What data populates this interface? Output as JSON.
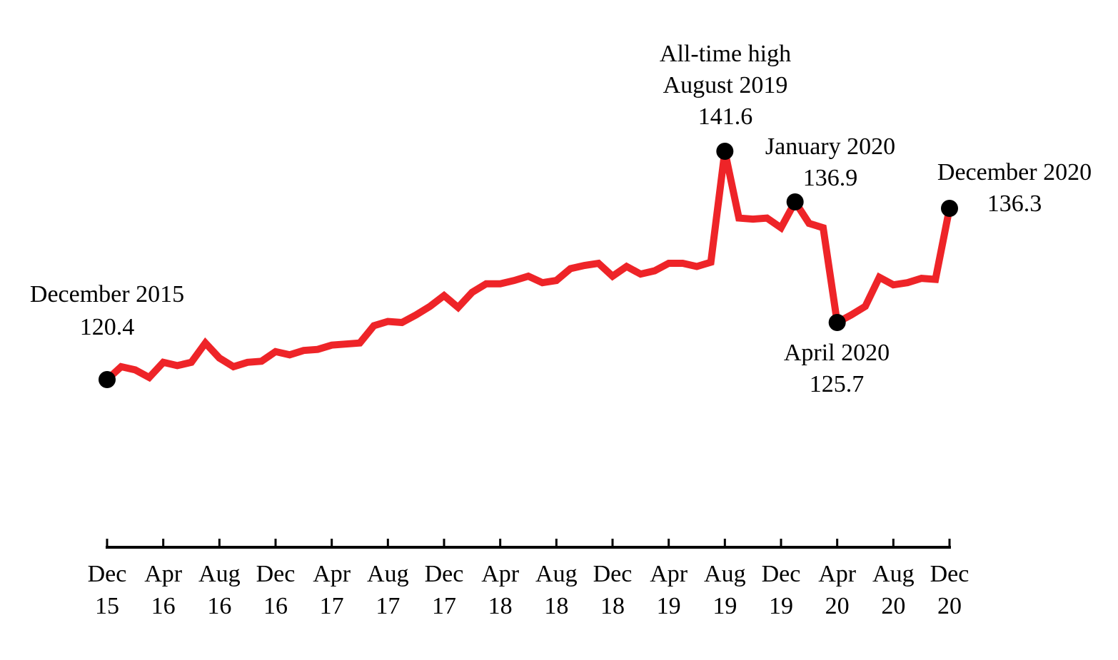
{
  "chart_data": {
    "type": "line",
    "title": "",
    "xlabel": "",
    "ylabel": "",
    "ylim": [
      110,
      145
    ],
    "grid": false,
    "legend": "none",
    "line_color": "#EE2428",
    "marker_color": "#000000",
    "x_ticks": [
      {
        "date": "2015-12",
        "line1": "Dec",
        "line2": "15"
      },
      {
        "date": "2016-04",
        "line1": "Apr",
        "line2": "16"
      },
      {
        "date": "2016-08",
        "line1": "Aug",
        "line2": "16"
      },
      {
        "date": "2016-12",
        "line1": "Dec",
        "line2": "16"
      },
      {
        "date": "2017-04",
        "line1": "Apr",
        "line2": "17"
      },
      {
        "date": "2017-08",
        "line1": "Aug",
        "line2": "17"
      },
      {
        "date": "2017-12",
        "line1": "Dec",
        "line2": "17"
      },
      {
        "date": "2018-04",
        "line1": "Apr",
        "line2": "18"
      },
      {
        "date": "2018-08",
        "line1": "Aug",
        "line2": "18"
      },
      {
        "date": "2018-12",
        "line1": "Dec",
        "line2": "18"
      },
      {
        "date": "2019-04",
        "line1": "Apr",
        "line2": "19"
      },
      {
        "date": "2019-08",
        "line1": "Aug",
        "line2": "19"
      },
      {
        "date": "2019-12",
        "line1": "Dec",
        "line2": "19"
      },
      {
        "date": "2020-04",
        "line1": "Apr",
        "line2": "20"
      },
      {
        "date": "2020-08",
        "line1": "Aug",
        "line2": "20"
      },
      {
        "date": "2020-12",
        "line1": "Dec",
        "line2": "20"
      }
    ],
    "x": [
      "2015-12",
      "2016-01",
      "2016-02",
      "2016-03",
      "2016-04",
      "2016-05",
      "2016-06",
      "2016-07",
      "2016-08",
      "2016-09",
      "2016-10",
      "2016-11",
      "2016-12",
      "2017-01",
      "2017-02",
      "2017-03",
      "2017-04",
      "2017-05",
      "2017-06",
      "2017-07",
      "2017-08",
      "2017-09",
      "2017-10",
      "2017-11",
      "2017-12",
      "2018-01",
      "2018-02",
      "2018-03",
      "2018-04",
      "2018-05",
      "2018-06",
      "2018-07",
      "2018-08",
      "2018-09",
      "2018-10",
      "2018-11",
      "2018-12",
      "2019-01",
      "2019-02",
      "2019-03",
      "2019-04",
      "2019-05",
      "2019-06",
      "2019-07",
      "2019-08",
      "2019-09",
      "2019-10",
      "2019-11",
      "2019-12",
      "2020-01",
      "2020-02",
      "2020-03",
      "2020-04",
      "2020-05",
      "2020-06",
      "2020-07",
      "2020-08",
      "2020-09",
      "2020-10",
      "2020-11",
      "2020-12"
    ],
    "values": [
      120.4,
      121.6,
      121.3,
      120.6,
      122.0,
      121.7,
      122.0,
      123.8,
      122.4,
      121.6,
      122.0,
      122.1,
      123.0,
      122.7,
      123.1,
      123.2,
      123.6,
      123.7,
      123.8,
      125.4,
      125.8,
      125.7,
      126.4,
      127.2,
      128.2,
      127.1,
      128.5,
      129.3,
      129.3,
      129.6,
      130.0,
      129.4,
      129.6,
      130.7,
      131.0,
      131.2,
      130.0,
      130.9,
      130.2,
      130.5,
      131.2,
      131.2,
      130.9,
      131.3,
      141.6,
      135.4,
      135.3,
      135.4,
      134.5,
      136.9,
      134.9,
      134.5,
      125.7,
      126.4,
      127.2,
      129.9,
      129.2,
      129.4,
      129.8,
      129.7,
      136.3
    ],
    "annotations": [
      {
        "date": "2015-12",
        "value": 120.4,
        "lines": [
          "December 2015",
          "120.4"
        ]
      },
      {
        "date": "2019-08",
        "value": 141.6,
        "lines": [
          "All-time high",
          "August 2019",
          "141.6"
        ]
      },
      {
        "date": "2020-01",
        "value": 136.9,
        "lines": [
          "January 2020",
          "136.9"
        ]
      },
      {
        "date": "2020-04",
        "value": 125.7,
        "lines": [
          "April 2020",
          "125.7"
        ]
      },
      {
        "date": "2020-12",
        "value": 136.3,
        "lines": [
          "December 2020",
          "136.3"
        ]
      }
    ]
  }
}
